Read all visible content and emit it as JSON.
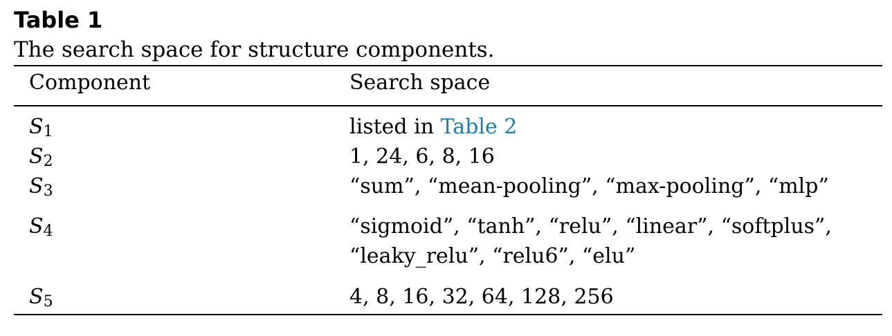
{
  "caption": {
    "label": "Table 1",
    "text": "The search space for structure components."
  },
  "header": {
    "component": "Component",
    "search_space": "Search space"
  },
  "rows": [
    {
      "symbol": "S",
      "index": "1",
      "value_prefix": "listed in ",
      "value_link": "Table 2",
      "value_line2": ""
    },
    {
      "symbol": "S",
      "index": "2",
      "value_prefix": "1, 24, 6, 8, 16",
      "value_link": "",
      "value_line2": ""
    },
    {
      "symbol": "S",
      "index": "3",
      "value_prefix": "“sum”, “mean-pooling”, “max-pooling”, “mlp”",
      "value_link": "",
      "value_line2": ""
    },
    {
      "symbol": "S",
      "index": "4",
      "value_prefix": "“sigmoid”, “tanh”, “relu”, “linear”, “softplus”,",
      "value_link": "",
      "value_line2": "“leaky_relu”, “relu6”, “elu”"
    },
    {
      "symbol": "S",
      "index": "5",
      "value_prefix": "4, 8, 16, 32, 64, 128, 256",
      "value_link": "",
      "value_line2": ""
    }
  ]
}
